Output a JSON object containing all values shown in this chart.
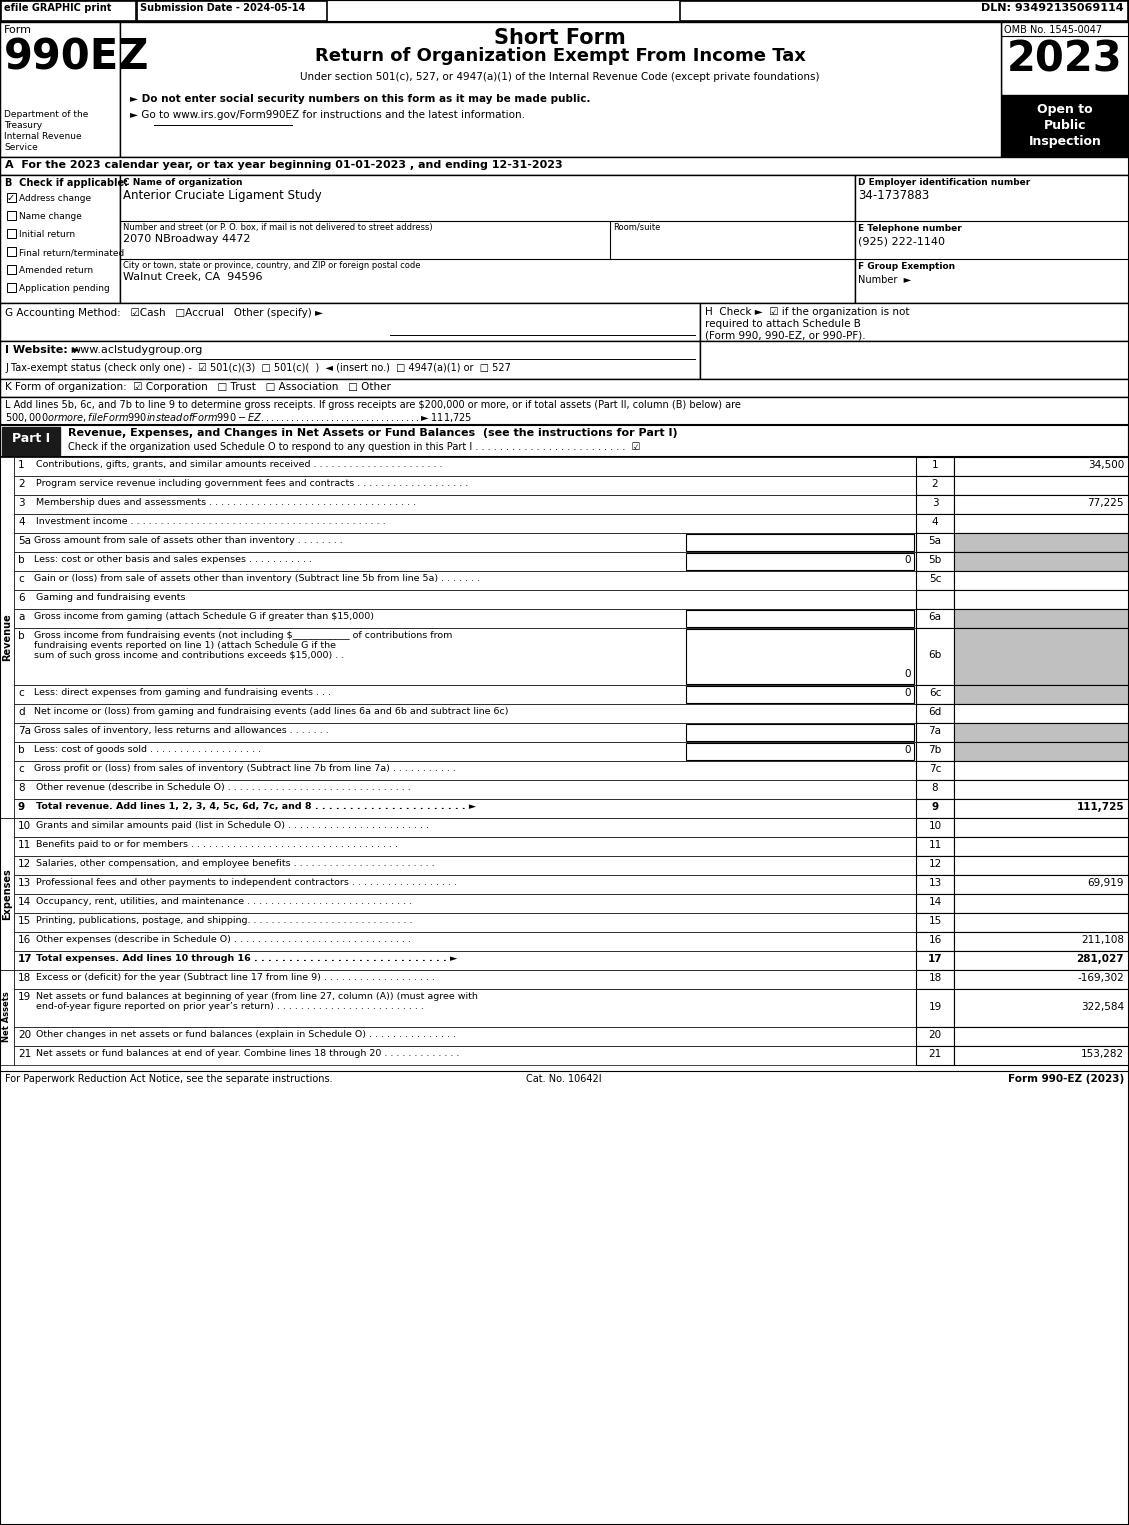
{
  "efile_text": "efile GRAPHIC print",
  "submission": "Submission Date - 2024-05-14",
  "dln": "DLN: 93492135069114",
  "form_label": "Form",
  "form_num": "990EZ",
  "dept_lines": [
    "Department of the",
    "Treasury",
    "Internal Revenue",
    "Service"
  ],
  "title_short": "Short Form",
  "title_main": "Return of Organization Exempt From Income Tax",
  "subtitle": "Under section 501(c), 527, or 4947(a)(1) of the Internal Revenue Code (except private foundations)",
  "note1": "► Do not enter social security numbers on this form as it may be made public.",
  "note2": "► Go to www.irs.gov/Form990EZ for instructions and the latest information.",
  "omb": "OMB No. 1545-0047",
  "year": "2023",
  "open_to": [
    "Open to",
    "Public",
    "Inspection"
  ],
  "section_a": "A  For the 2023 calendar year, or tax year beginning 01-01-2023 , and ending 12-31-2023",
  "section_b_label": "B  Check if applicable:",
  "checkboxes_b": [
    "Address change",
    "Name change",
    "Initial return",
    "Final return/terminated",
    "Amended return",
    "Application pending"
  ],
  "checked_b": [
    true,
    false,
    false,
    false,
    false,
    false
  ],
  "section_c_label": "C Name of organization",
  "org_name": "Anterior Cruciate Ligament Study",
  "section_d_label": "D Employer identification number",
  "ein": "34-1737883",
  "addr_label": "Number and street (or P. O. box, if mail is not delivered to street address)",
  "room_label": "Room/suite",
  "address": "2070 NBroadway 4472",
  "section_e_label": "E Telephone number",
  "phone": "(925) 222-1140",
  "city_label": "City or town, state or province, country, and ZIP or foreign postal code",
  "city": "Walnut Creek, CA  94596",
  "section_f_label": "F Group Exemption",
  "section_f_label2": "Number  ►",
  "section_g_label": "G Accounting Method:",
  "section_g_rest": "☑Cash   □Accrual   Other (specify) ►",
  "section_h_lines": [
    "H  Check ►  ☑ if the organization is not",
    "required to attach Schedule B",
    "(Form 990, 990-EZ, or 990-PF)."
  ],
  "section_i_label": "I Website: ►",
  "section_i_url": "www.aclstudygroup.org",
  "section_j": "J Tax-exempt status (check only one) -  ☑ 501(c)(3)  □ 501(c)(  )  ◄ (insert no.)  □ 4947(a)(1) or  □ 527",
  "section_k": "K Form of organization:  ☑ Corporation   □ Trust   □ Association   □ Other",
  "section_l1": "L Add lines 5b, 6c, and 7b to line 9 to determine gross receipts. If gross receipts are $200,000 or more, or if total assets (Part II, column (B) below) are",
  "section_l2": "$500,000 or more, file Form 990 instead of Form 990-EZ . . . . . . . . . . . . . . . . . . . . . . . . . . . . . . . . ►$ 111,725",
  "part1_box": "Part I",
  "part1_title": "Revenue, Expenses, and Changes in Net Assets or Fund Balances",
  "part1_sub": "(see the instructions for Part I)",
  "part1_check": "Check if the organization used Schedule O to respond to any question in this Part I . . . . . . . . . . . . . . . . . . . . . . . . .",
  "part1_check_mark": "☑",
  "revenue_rows": [
    {
      "num": "1",
      "text": "Contributions, gifts, grants, and similar amounts received . . . . . . . . . . . . . . . . . . . . . .",
      "value": "34,500",
      "bold": false,
      "gray": false,
      "sub": false,
      "inner_box": false
    },
    {
      "num": "2",
      "text": "Program service revenue including government fees and contracts . . . . . . . . . . . . . . . . . . .",
      "value": "",
      "bold": false,
      "gray": false,
      "sub": false,
      "inner_box": false
    },
    {
      "num": "3",
      "text": "Membership dues and assessments . . . . . . . . . . . . . . . . . . . . . . . . . . . . . . . . . . .",
      "value": "77,225",
      "bold": false,
      "gray": false,
      "sub": false,
      "inner_box": false
    },
    {
      "num": "4",
      "text": "Investment income . . . . . . . . . . . . . . . . . . . . . . . . . . . . . . . . . . . . . . . . . . .",
      "value": "",
      "bold": false,
      "gray": false,
      "sub": false,
      "inner_box": false
    },
    {
      "num": "5a",
      "text": "Gross amount from sale of assets other than inventory . . . . . . . .",
      "value": "",
      "bold": false,
      "gray": true,
      "sub": true,
      "inner_box": true
    },
    {
      "num": "b",
      "text": "Less: cost or other basis and sales expenses . . . . . . . . . . .",
      "value": "0",
      "bold": false,
      "gray": true,
      "sub": true,
      "inner_box": true
    },
    {
      "num": "c",
      "text": "Gain or (loss) from sale of assets other than inventory (Subtract line 5b from line 5a) . . . . . . .",
      "value": "",
      "bold": false,
      "gray": false,
      "sub": true,
      "inner_box": false,
      "box_label": "5c"
    },
    {
      "num": "6",
      "text": "Gaming and fundraising events",
      "value": "",
      "bold": false,
      "gray": false,
      "sub": false,
      "inner_box": false,
      "header": true
    },
    {
      "num": "a",
      "text": "Gross income from gaming (attach Schedule G if greater than $15,000)",
      "value": "",
      "bold": false,
      "gray": true,
      "sub": true,
      "inner_box": true,
      "box_label": "6a"
    },
    {
      "num": "b_multi",
      "text1": "Gross income from fundraising events (not including $____________ of contributions from",
      "text2": "fundraising events reported on line 1) (attach Schedule G if the",
      "text3": "sum of such gross income and contributions exceeds $15,000) . .",
      "value": "0",
      "bold": false,
      "gray": true,
      "sub": true,
      "inner_box": true,
      "box_label": "6b",
      "multiline": true
    },
    {
      "num": "c",
      "text": "Less: direct expenses from gaming and fundraising events . . .",
      "value": "0",
      "bold": false,
      "gray": true,
      "sub": true,
      "inner_box": true,
      "box_label": "6c"
    },
    {
      "num": "d",
      "text": "Net income or (loss) from gaming and fundraising events (add lines 6a and 6b and subtract line 6c)",
      "value": "",
      "bold": false,
      "gray": false,
      "sub": true,
      "inner_box": false,
      "box_label": "6d"
    },
    {
      "num": "7a",
      "text": "Gross sales of inventory, less returns and allowances . . . . . . .",
      "value": "",
      "bold": false,
      "gray": true,
      "sub": true,
      "inner_box": true
    },
    {
      "num": "b",
      "text": "Less: cost of goods sold . . . . . . . . . . . . . . . . . . .",
      "value": "0",
      "bold": false,
      "gray": true,
      "sub": true,
      "inner_box": true,
      "box_label": "7b"
    },
    {
      "num": "c",
      "text": "Gross profit or (loss) from sales of inventory (Subtract line 7b from line 7a) . . . . . . . . . . .",
      "value": "",
      "bold": false,
      "gray": false,
      "sub": true,
      "inner_box": false,
      "box_label": "7c"
    },
    {
      "num": "8",
      "text": "Other revenue (describe in Schedule O) . . . . . . . . . . . . . . . . . . . . . . . . . . . . . . .",
      "value": "",
      "bold": false,
      "gray": false,
      "sub": false,
      "inner_box": false
    },
    {
      "num": "9",
      "text": "Total revenue. Add lines 1, 2, 3, 4, 5c, 6d, 7c, and 8 . . . . . . . . . . . . . . . . . . . . . . ►",
      "value": "111,725",
      "bold": true,
      "gray": false,
      "sub": false,
      "inner_box": false
    }
  ],
  "expense_rows": [
    {
      "num": "10",
      "text": "Grants and similar amounts paid (list in Schedule O) . . . . . . . . . . . . . . . . . . . . . . . .",
      "value": "",
      "bold": false
    },
    {
      "num": "11",
      "text": "Benefits paid to or for members . . . . . . . . . . . . . . . . . . . . . . . . . . . . . . . . . . .",
      "value": "",
      "bold": false
    },
    {
      "num": "12",
      "text": "Salaries, other compensation, and employee benefits . . . . . . . . . . . . . . . . . . . . . . . .",
      "value": "",
      "bold": false
    },
    {
      "num": "13",
      "text": "Professional fees and other payments to independent contractors . . . . . . . . . . . . . . . . . .",
      "value": "69,919",
      "bold": false
    },
    {
      "num": "14",
      "text": "Occupancy, rent, utilities, and maintenance . . . . . . . . . . . . . . . . . . . . . . . . . . . .",
      "value": "",
      "bold": false
    },
    {
      "num": "15",
      "text": "Printing, publications, postage, and shipping. . . . . . . . . . . . . . . . . . . . . . . . . . . .",
      "value": "",
      "bold": false
    },
    {
      "num": "16",
      "text": "Other expenses (describe in Schedule O) . . . . . . . . . . . . . . . . . . . . . . . . . . . . . .",
      "value": "211,108",
      "bold": false
    },
    {
      "num": "17",
      "text": "Total expenses. Add lines 10 through 16 . . . . . . . . . . . . . . . . . . . . . . . . . . . . ►",
      "value": "281,027",
      "bold": true
    }
  ],
  "net_rows": [
    {
      "num": "18",
      "text": "Excess or (deficit) for the year (Subtract line 17 from line 9) . . . . . . . . . . . . . . . . . . .",
      "value": "-169,302",
      "bold": false,
      "multiline": false
    },
    {
      "num": "19",
      "text1": "Net assets or fund balances at beginning of year (from line 27, column (A)) (must agree with",
      "text2": "end-of-year figure reported on prior year’s return) . . . . . . . . . . . . . . . . . . . . . . . . .",
      "value": "322,584",
      "bold": false,
      "multiline": true
    },
    {
      "num": "20",
      "text": "Other changes in net assets or fund balances (explain in Schedule O) . . . . . . . . . . . . . . .",
      "value": "",
      "bold": false,
      "multiline": false
    },
    {
      "num": "21",
      "text": "Net assets or fund balances at end of year. Combine lines 18 through 20 . . . . . . . . . . . . .",
      "value": "153,282",
      "bold": false,
      "multiline": false
    }
  ],
  "footer1": "For Paperwork Reduction Act Notice, see the separate instructions.",
  "footer2": "Cat. No. 10642I",
  "footer3": "Form 990-EZ (2023)"
}
